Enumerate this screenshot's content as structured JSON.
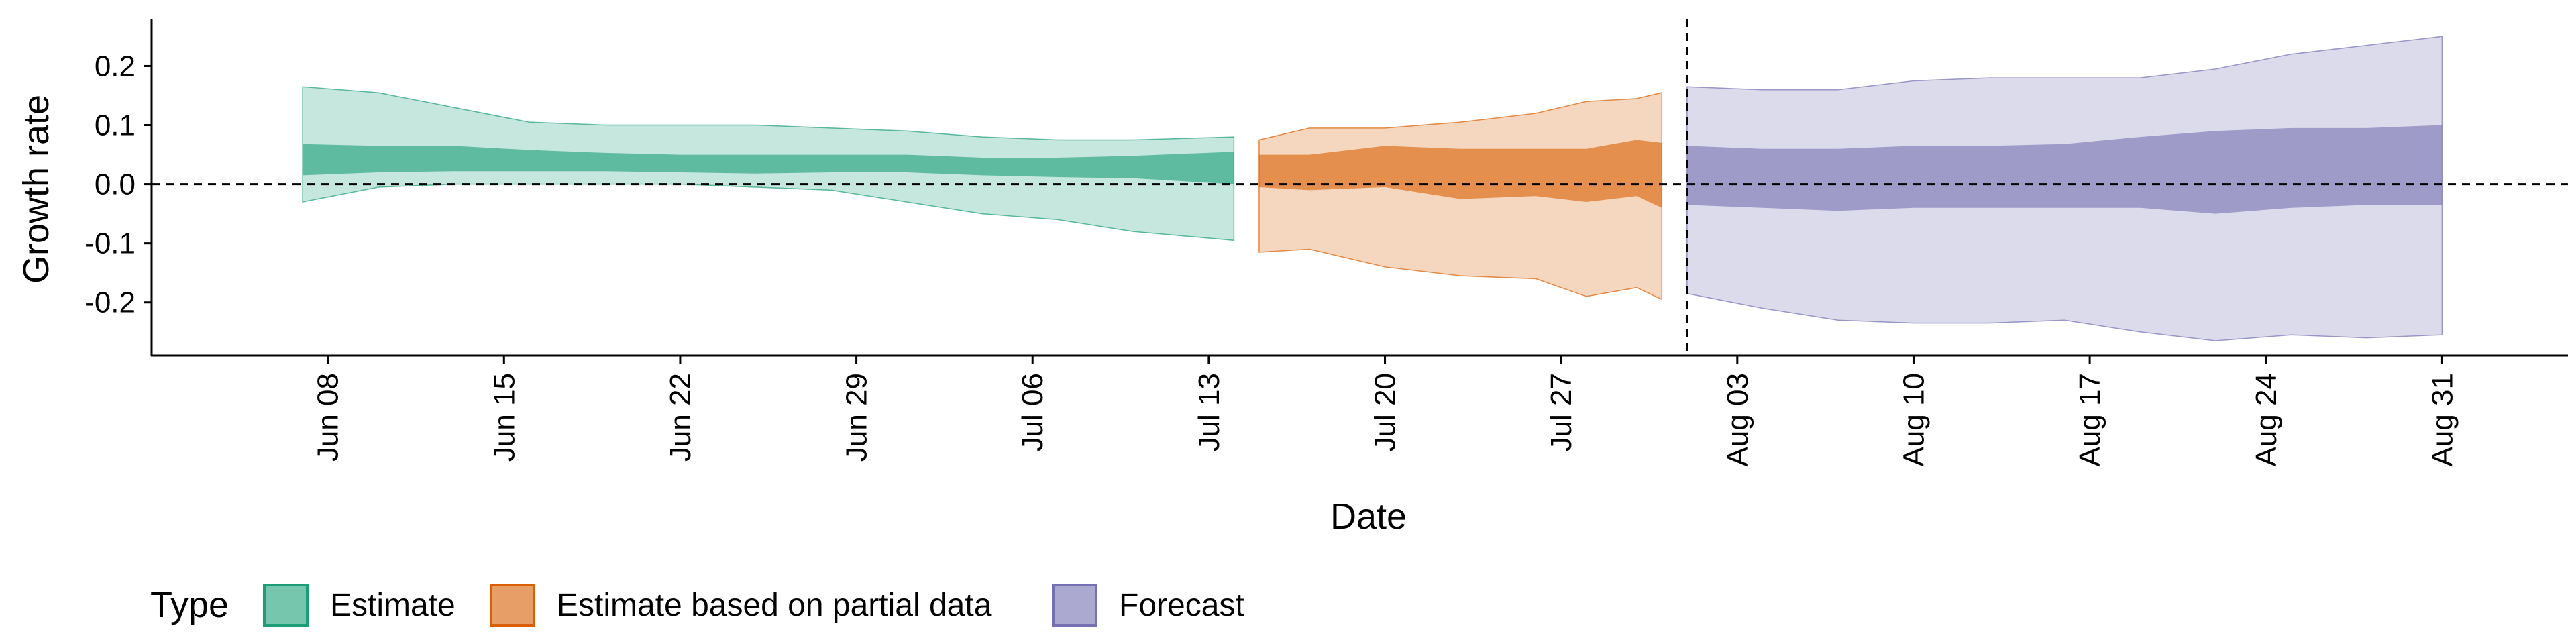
{
  "chart_data": {
    "type": "area",
    "xlabel": "Date",
    "ylabel": "Growth rate",
    "x_range": [
      "2020-06-01",
      "2020-09-05"
    ],
    "ylim": [
      -0.29,
      0.28
    ],
    "y_ticks": [
      0.2,
      0.1,
      0.0,
      -0.1,
      -0.2
    ],
    "y_tick_labels": [
      "0.2",
      "0.1",
      "0.0",
      "-0.1",
      "-0.2"
    ],
    "x_ticks": [
      "2020-06-08",
      "2020-06-15",
      "2020-06-22",
      "2020-06-29",
      "2020-07-06",
      "2020-07-13",
      "2020-07-20",
      "2020-07-27",
      "2020-08-03",
      "2020-08-10",
      "2020-08-17",
      "2020-08-24",
      "2020-08-31"
    ],
    "x_tick_labels": [
      "Jun 08",
      "Jun 15",
      "Jun 22",
      "Jun 29",
      "Jul 06",
      "Jul 13",
      "Jul 20",
      "Jul 27",
      "Aug 03",
      "Aug 10",
      "Aug 17",
      "Aug 24",
      "Aug 31"
    ],
    "grid": false,
    "reference_lines": {
      "horizontal_y": 0.0,
      "vertical_date": "2020-08-01",
      "style": "dashed"
    },
    "legend": {
      "title": "Type",
      "position": "bottom-left",
      "items": [
        {
          "label": "Estimate",
          "color": "#1b9e77"
        },
        {
          "label": "Estimate based on partial data",
          "color": "#d95f02"
        },
        {
          "label": "Forecast",
          "color": "#7570b3"
        }
      ]
    },
    "series": [
      {
        "name": "Estimate",
        "color": "#1b9e77",
        "inner_opacity": 0.6,
        "outer_opacity": 0.25,
        "points": [
          [
            "2020-06-07",
            -0.03,
            0.165,
            0.015,
            0.068
          ],
          [
            "2020-06-10",
            -0.005,
            0.155,
            0.02,
            0.065
          ],
          [
            "2020-06-13",
            0.0,
            0.13,
            0.022,
            0.065
          ],
          [
            "2020-06-16",
            0.0,
            0.105,
            0.022,
            0.058
          ],
          [
            "2020-06-19",
            0.0,
            0.1,
            0.022,
            0.053
          ],
          [
            "2020-06-22",
            0.0,
            0.1,
            0.02,
            0.05
          ],
          [
            "2020-06-25",
            -0.005,
            0.1,
            0.018,
            0.05
          ],
          [
            "2020-06-28",
            -0.01,
            0.095,
            0.02,
            0.05
          ],
          [
            "2020-07-01",
            -0.03,
            0.09,
            0.02,
            0.05
          ],
          [
            "2020-07-04",
            -0.05,
            0.08,
            0.015,
            0.045
          ],
          [
            "2020-07-07",
            -0.06,
            0.075,
            0.012,
            0.045
          ],
          [
            "2020-07-10",
            -0.08,
            0.075,
            0.01,
            0.048
          ],
          [
            "2020-07-14",
            -0.095,
            0.08,
            0.0,
            0.055
          ]
        ]
      },
      {
        "name": "Estimate based on partial data",
        "color": "#d95f02",
        "inner_opacity": 0.6,
        "outer_opacity": 0.25,
        "points": [
          [
            "2020-07-15",
            -0.115,
            0.075,
            -0.005,
            0.05
          ],
          [
            "2020-07-17",
            -0.11,
            0.095,
            -0.01,
            0.05
          ],
          [
            "2020-07-20",
            -0.14,
            0.095,
            -0.005,
            0.065
          ],
          [
            "2020-07-23",
            -0.155,
            0.105,
            -0.025,
            0.06
          ],
          [
            "2020-07-26",
            -0.16,
            0.12,
            -0.02,
            0.06
          ],
          [
            "2020-07-28",
            -0.19,
            0.14,
            -0.03,
            0.06
          ],
          [
            "2020-07-30",
            -0.175,
            0.145,
            -0.02,
            0.075
          ],
          [
            "2020-07-31",
            -0.195,
            0.155,
            -0.04,
            0.07
          ]
        ]
      },
      {
        "name": "Forecast",
        "color": "#7570b3",
        "inner_opacity": 0.6,
        "outer_opacity": 0.25,
        "points": [
          [
            "2020-08-01",
            -0.185,
            0.165,
            -0.035,
            0.065
          ],
          [
            "2020-08-04",
            -0.21,
            0.16,
            -0.04,
            0.06
          ],
          [
            "2020-08-07",
            -0.23,
            0.16,
            -0.045,
            0.06
          ],
          [
            "2020-08-10",
            -0.235,
            0.175,
            -0.04,
            0.065
          ],
          [
            "2020-08-13",
            -0.235,
            0.18,
            -0.04,
            0.065
          ],
          [
            "2020-08-16",
            -0.23,
            0.18,
            -0.04,
            0.068
          ],
          [
            "2020-08-19",
            -0.25,
            0.18,
            -0.04,
            0.08
          ],
          [
            "2020-08-22",
            -0.265,
            0.195,
            -0.05,
            0.09
          ],
          [
            "2020-08-25",
            -0.255,
            0.22,
            -0.04,
            0.095
          ],
          [
            "2020-08-28",
            -0.26,
            0.235,
            -0.035,
            0.095
          ],
          [
            "2020-08-31",
            -0.255,
            0.25,
            -0.035,
            0.1
          ]
        ]
      }
    ]
  }
}
